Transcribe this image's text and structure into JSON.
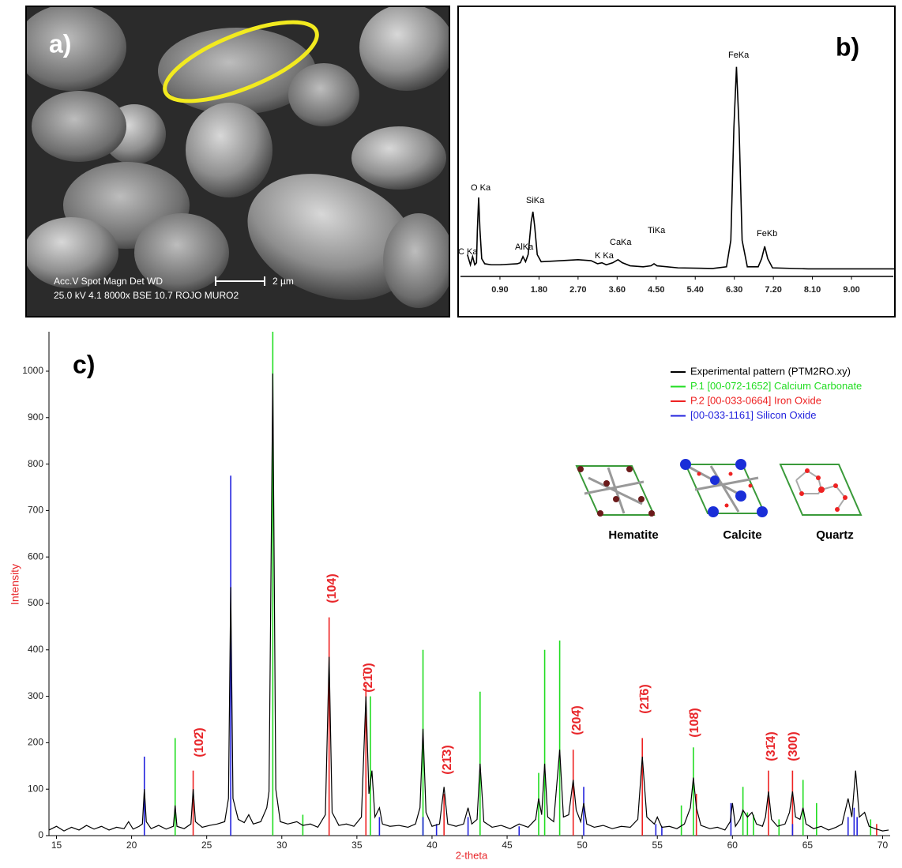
{
  "panel_a": {
    "label": "a)",
    "info_line_1": "Acc.V   Spot Magn    Det  WD",
    "info_line_2": "25.0 kV 4.1   8000x   BSE 10.7 ROJO MURO2",
    "scale_bar": "2 µm"
  },
  "chart_data": [
    {
      "type": "line",
      "label": "b)",
      "color": "#000000",
      "x": [
        0.15,
        0.22,
        0.27,
        0.32,
        0.36,
        0.38,
        0.41,
        0.44,
        0.48,
        0.55,
        0.7,
        0.9,
        1.3,
        1.37,
        1.43,
        1.49,
        1.55,
        1.62,
        1.66,
        1.7,
        1.76,
        1.85,
        2.3,
        2.7,
        3.0,
        3.15,
        3.25,
        3.35,
        3.5,
        3.62,
        3.72,
        3.9,
        4.2,
        4.38,
        4.45,
        4.52,
        5.0,
        5.8,
        6.12,
        6.22,
        6.29,
        6.35,
        6.41,
        6.48,
        6.6,
        6.85,
        6.93,
        7.0,
        7.07,
        7.18,
        8.0,
        9.5,
        10
      ],
      "values": [
        8,
        3,
        7,
        3,
        4,
        20,
        36,
        20,
        6,
        3.5,
        3,
        3,
        3.5,
        4,
        7,
        4.5,
        8,
        24,
        29,
        22,
        8,
        4.5,
        5,
        5.5,
        5,
        3.5,
        4,
        3,
        4,
        5.5,
        4,
        2.5,
        2,
        2.5,
        3.5,
        2.5,
        1.5,
        1.2,
        2,
        15,
        70,
        100,
        70,
        15,
        2,
        2,
        6,
        12,
        6,
        1.5,
        1,
        1,
        1
      ],
      "xlim": [
        0,
        10
      ],
      "ylim": [
        0,
        125
      ],
      "xticks": [
        {
          "value": 0.9,
          "label": "0.90"
        },
        {
          "value": 1.8,
          "label": "1.80"
        },
        {
          "value": 2.7,
          "label": "2.70"
        },
        {
          "value": 3.6,
          "label": "3.60"
        },
        {
          "value": 4.5,
          "label": "4.50"
        },
        {
          "value": 5.4,
          "label": "5.40"
        },
        {
          "value": 6.3,
          "label": "6.30"
        },
        {
          "value": 7.2,
          "label": "7.20"
        },
        {
          "value": 8.1,
          "label": "8.10"
        },
        {
          "value": 9,
          "label": "9.00"
        }
      ],
      "peak_labels": [
        "C Ka",
        "O Ka",
        "AlKa",
        "SiKa",
        "K Ka",
        "CaKa",
        "TiKa",
        "FeKa",
        "FeKb"
      ]
    },
    {
      "type": "line",
      "label": "c)",
      "x_label": "2-theta",
      "y_label": "Intensity",
      "xlim": [
        14.5,
        70.5
      ],
      "ylim": [
        0,
        1085
      ],
      "xticks": [
        15,
        20,
        25,
        30,
        35,
        40,
        45,
        50,
        55,
        60,
        65,
        70
      ],
      "yticks": [
        0,
        100,
        200,
        300,
        400,
        500,
        600,
        700,
        800,
        900,
        1000
      ],
      "series": [
        {
          "name": "Experimental pattern (PTM2RO.xy)",
          "color": "#000000",
          "type": "line",
          "x": [
            14.5,
            15,
            15.5,
            16,
            16.5,
            17,
            17.5,
            18,
            18.5,
            19,
            19.5,
            19.8,
            20.1,
            20.5,
            20.72,
            20.85,
            20.98,
            21.3,
            21.8,
            22.3,
            22.78,
            22.9,
            23.02,
            23.5,
            23.95,
            24.1,
            24.25,
            24.7,
            25.2,
            25.7,
            26.2,
            26.45,
            26.6,
            26.75,
            27.1,
            27.5,
            27.8,
            28.1,
            28.6,
            29.0,
            29.15,
            29.4,
            29.6,
            29.9,
            30.4,
            31.0,
            31.4,
            31.9,
            32.4,
            32.9,
            33.15,
            33.35,
            33.8,
            34.3,
            34.8,
            35.3,
            35.6,
            35.8,
            36.0,
            36.2,
            36.5,
            36.7,
            37.2,
            37.8,
            38.4,
            38.9,
            39.2,
            39.4,
            39.6,
            40.0,
            40.5,
            40.8,
            41.05,
            41.6,
            42.1,
            42.4,
            42.65,
            43.0,
            43.2,
            43.45,
            44.0,
            44.6,
            45.2,
            45.8,
            46.4,
            46.9,
            47.1,
            47.3,
            47.5,
            47.7,
            48.1,
            48.5,
            48.75,
            49.1,
            49.4,
            49.6,
            49.9,
            50.1,
            50.3,
            50.8,
            51.4,
            52.0,
            52.6,
            53.2,
            53.7,
            54.0,
            54.3,
            54.8,
            55.0,
            55.3,
            55.8,
            56.3,
            56.8,
            57.2,
            57.4,
            57.6,
            57.9,
            58.5,
            59.0,
            59.5,
            59.85,
            60.0,
            60.2,
            60.5,
            60.7,
            61.0,
            61.3,
            61.6,
            62.0,
            62.2,
            62.4,
            62.6,
            63.0,
            63.5,
            63.8,
            64.0,
            64.2,
            64.5,
            64.7,
            64.9,
            65.4,
            65.9,
            66.4,
            66.9,
            67.3,
            67.7,
            67.95,
            68.2,
            68.45,
            68.8,
            69.1,
            69.5,
            70.0,
            70.4
          ],
          "values": [
            12,
            20,
            10,
            18,
            12,
            22,
            14,
            20,
            12,
            18,
            15,
            30,
            14,
            20,
            25,
            100,
            30,
            15,
            22,
            14,
            20,
            65,
            20,
            15,
            25,
            100,
            30,
            18,
            22,
            25,
            30,
            80,
            535,
            80,
            35,
            28,
            45,
            25,
            30,
            60,
            95,
            995,
            100,
            30,
            25,
            30,
            22,
            25,
            18,
            45,
            385,
            50,
            22,
            25,
            20,
            40,
            300,
            90,
            140,
            40,
            60,
            25,
            20,
            22,
            18,
            25,
            60,
            230,
            50,
            20,
            25,
            105,
            25,
            20,
            25,
            60,
            25,
            35,
            155,
            30,
            18,
            22,
            15,
            25,
            18,
            35,
            80,
            45,
            155,
            40,
            30,
            185,
            40,
            45,
            120,
            55,
            30,
            70,
            25,
            18,
            22,
            15,
            20,
            18,
            35,
            170,
            40,
            25,
            40,
            18,
            20,
            15,
            25,
            60,
            125,
            60,
            22,
            15,
            18,
            12,
            30,
            70,
            20,
            35,
            55,
            40,
            50,
            25,
            20,
            40,
            95,
            35,
            20,
            25,
            50,
            95,
            40,
            35,
            60,
            25,
            15,
            20,
            12,
            18,
            25,
            80,
            40,
            140,
            40,
            50,
            20,
            15,
            10,
            12
          ]
        },
        {
          "name": "P.1 [00-072-1652]  Calcium Carbonate",
          "color": "#22dd22",
          "type": "bar",
          "x": [
            22.9,
            29.4,
            31.4,
            35.9,
            39.4,
            43.2,
            47.1,
            47.5,
            48.5,
            56.6,
            57.4,
            60.7,
            61.0,
            61.4,
            63.1,
            64.7,
            65.6,
            69.2
          ],
          "values": [
            210,
            1085,
            45,
            300,
            400,
            310,
            135,
            400,
            420,
            65,
            190,
            105,
            50,
            45,
            35,
            120,
            70,
            35
          ]
        },
        {
          "name": "P.2 [00-033-0664]  Iron Oxide",
          "color": "#ee2222",
          "type": "bar",
          "x": [
            24.1,
            33.15,
            35.6,
            40.8,
            49.4,
            54.0,
            57.6,
            62.4,
            64.0,
            69.6
          ],
          "values": [
            140,
            470,
            325,
            90,
            185,
            210,
            90,
            140,
            140,
            25
          ]
        },
        {
          "name": "[00-033-1161]  Silicon Oxide",
          "color": "#2222dd",
          "type": "bar",
          "x": [
            20.85,
            26.6,
            36.5,
            39.4,
            40.3,
            42.4,
            45.8,
            50.1,
            54.9,
            55.3,
            59.9,
            64.0,
            67.7,
            68.1,
            68.3
          ],
          "values": [
            170,
            775,
            40,
            40,
            25,
            40,
            20,
            105,
            25,
            20,
            70,
            25,
            40,
            60,
            40
          ]
        }
      ],
      "annotations": [
        "(102̄)",
        "(104)",
        "(21̄0)",
        "(21̄3)",
        "(204̄)",
        "(21̄6)",
        "(108̄)",
        "(31̄4)",
        "(300)"
      ],
      "insets": [
        "Hematite",
        "Calcite",
        "Quartz"
      ]
    }
  ]
}
